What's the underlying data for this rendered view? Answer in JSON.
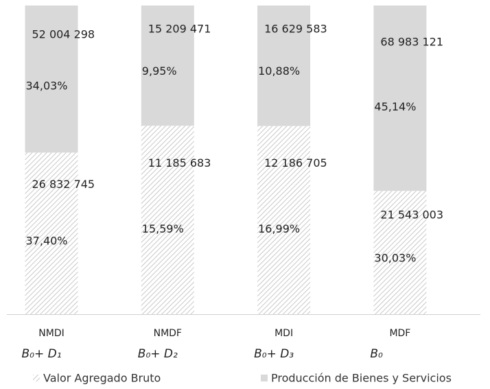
{
  "chart_data": {
    "type": "bar",
    "stacked": "percent",
    "categories": [
      "NMDI",
      "NMDF",
      "MDI",
      "MDF"
    ],
    "formulas": [
      "B₀+ D₁",
      "B₀+ D₂",
      "B₀+ D₃",
      "B₀"
    ],
    "series": [
      {
        "name": "Valor Agregado Bruto",
        "color": "#bfbfbf",
        "pattern": "hatch",
        "values": [
          37.4,
          15.59,
          16.99,
          30.03
        ],
        "value_labels": [
          "37,40%",
          "15,59%",
          "16,99%",
          "30,03%"
        ],
        "amount_labels": [
          "26 832 745",
          "11 185 683",
          "12 186 705",
          "21 543 003"
        ]
      },
      {
        "name": "Producción de Bienes y Servicios",
        "color": "#d9d9d9",
        "pattern": "solid",
        "values": [
          34.03,
          9.95,
          10.88,
          45.14
        ],
        "value_labels": [
          "34,03%",
          "9,95%",
          "10,88%",
          "45,14%"
        ],
        "amount_labels": [
          "52 004 298",
          "15 209 471",
          "16 629 583",
          "68 983 121"
        ]
      }
    ],
    "legend": "bottom"
  }
}
